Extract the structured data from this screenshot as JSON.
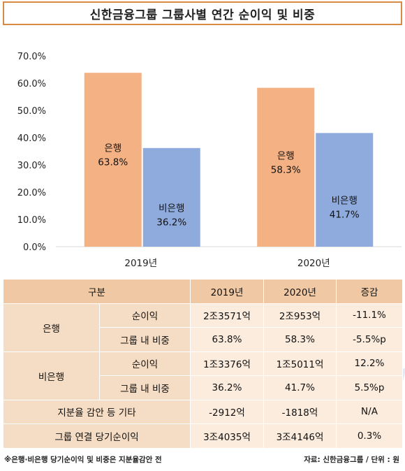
{
  "title": "신한금융그룹 그룹사별 연간 순이익 및 비중",
  "chart_data": {
    "type": "bar",
    "categories": [
      "2019년",
      "2020년"
    ],
    "series": [
      {
        "name": "은행",
        "values": [
          63.8,
          58.3
        ],
        "labels": [
          "63.8%",
          "58.3%"
        ],
        "color": "#f4b183"
      },
      {
        "name": "비은행",
        "values": [
          36.2,
          41.7
        ],
        "labels": [
          "36.2%",
          "41.7%"
        ],
        "color": "#8faadc"
      }
    ],
    "ylim": [
      0,
      70
    ],
    "yticks": [
      0,
      10,
      20,
      30,
      40,
      50,
      60,
      70
    ],
    "ytick_labels": [
      "0.0%",
      "10.0%",
      "20.0%",
      "30.0%",
      "40.0%",
      "50.0%",
      "60.0%",
      "70.0%"
    ],
    "grid": false,
    "legend": "none"
  },
  "table": {
    "headers": [
      "구분",
      "2019년",
      "2020년",
      "증감"
    ],
    "bank": {
      "label": "은행",
      "rows": [
        {
          "sub": "순이익",
          "v2019": "2조3571억",
          "v2020": "2조953억",
          "change": "-11.1%"
        },
        {
          "sub": "그룹 내 비중",
          "v2019": "63.8%",
          "v2020": "58.3%",
          "change": "-5.5%p"
        }
      ]
    },
    "nonbank": {
      "label": "비은행",
      "rows": [
        {
          "sub": "순이익",
          "v2019": "1조3376억",
          "v2020": "1조5011억",
          "change": "12.2%"
        },
        {
          "sub": "그룹 내 비중",
          "v2019": "36.2%",
          "v2020": "41.7%",
          "change": "5.5%p"
        }
      ]
    },
    "etc": {
      "label": "지분율 감안 등 기타",
      "v2019": "-2912억",
      "v2020": "-1818억",
      "change": "N/A"
    },
    "total": {
      "label": "그룹 연결 당기순이익",
      "v2019": "3조4035억",
      "v2020": "3조4146억",
      "change": "0.3%"
    }
  },
  "watermark": {
    "part1": "data",
    "part2": "news"
  },
  "footnote": "※은행·비은행 당기순이익 및 비중은 지분율감안 전",
  "source": "자료: 신한금융그룹 / 단위 : 원"
}
